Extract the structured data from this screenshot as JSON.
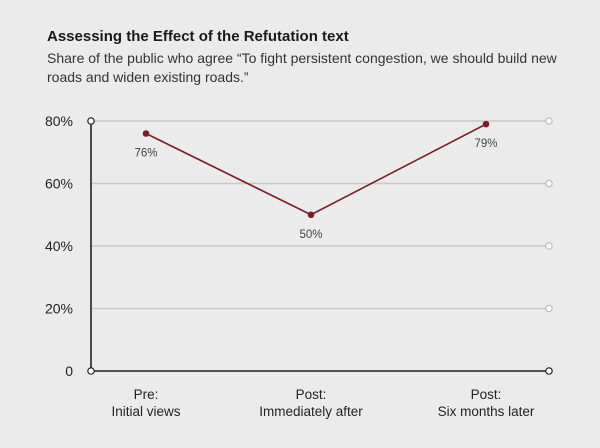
{
  "chart_data": {
    "type": "line",
    "title": "Assessing the Effect of the Refutation text",
    "subtitle": "Share of the public who agree “To fight persistent congestion, we should build new roads and widen existing roads.”",
    "categories": [
      [
        "Pre:",
        "Initial views"
      ],
      [
        "Post:",
        "Immediately after"
      ],
      [
        "Post:",
        "Six months later"
      ]
    ],
    "series": [
      {
        "values": [
          76,
          50,
          79
        ],
        "value_labels": [
          "76%",
          "50%",
          "79%"
        ]
      }
    ],
    "y_ticks": [
      {
        "value": 0,
        "label": "0"
      },
      {
        "value": 20,
        "label": "20%"
      },
      {
        "value": 40,
        "label": "40%"
      },
      {
        "value": 60,
        "label": "60%"
      },
      {
        "value": 80,
        "label": "80%"
      }
    ],
    "ylim": [
      0,
      80
    ],
    "grid": true,
    "colors": {
      "line": "#7a1e24",
      "grid": "#c8c8c8",
      "axis": "#222222",
      "right_markers": "#bbbbbb"
    }
  }
}
